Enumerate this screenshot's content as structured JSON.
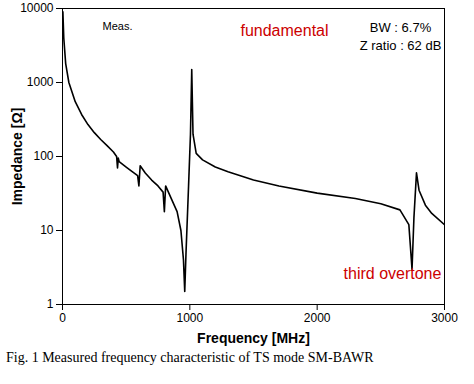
{
  "chart_data": {
    "type": "line",
    "caption": "Fig. 1 Measured frequency characteristic of TS mode SM-BAWR",
    "x_label": "Frequency [MHz]",
    "y_label": "Impedance [Ω]",
    "log": "y",
    "color": "#000000",
    "xlim": [
      0,
      3000
    ],
    "xticks": [
      0,
      1000,
      2000,
      3000
    ],
    "ylim": [
      1,
      10000
    ],
    "yticks": [
      1,
      10,
      100,
      1000,
      10000
    ],
    "annotations": [
      {
        "text": "Meas.",
        "color": "#000000"
      },
      {
        "text": "fundamental",
        "color": "#cc0000"
      },
      {
        "text": "BW : 6.7%",
        "color": "#000000"
      },
      {
        "text": "Z ratio : 62 dB",
        "color": "#000000"
      },
      {
        "text": "third overtone",
        "color": "#cc0000"
      }
    ],
    "x": [
      3,
      10,
      25,
      50,
      100,
      150,
      200,
      250,
      300,
      350,
      400,
      425,
      432,
      438,
      445,
      500,
      550,
      590,
      600,
      610,
      650,
      700,
      750,
      790,
      800,
      810,
      850,
      900,
      930,
      950,
      960,
      970,
      990,
      1005,
      1015,
      1025,
      1050,
      1100,
      1200,
      1300,
      1500,
      1700,
      2000,
      2300,
      2500,
      2650,
      2720,
      2745,
      2760,
      2780,
      2800,
      2850,
      2900,
      3000
    ],
    "values": [
      9000,
      4000,
      1800,
      1000,
      550,
      370,
      270,
      210,
      170,
      140,
      115,
      100,
      70,
      95,
      85,
      72,
      62,
      55,
      40,
      75,
      60,
      48,
      40,
      33,
      18,
      40,
      28,
      18,
      10,
      4,
      1.5,
      5,
      40,
      200,
      1500,
      200,
      110,
      90,
      72,
      62,
      48,
      40,
      32,
      27,
      23,
      19,
      12,
      3,
      15,
      60,
      35,
      22,
      17,
      12
    ]
  }
}
